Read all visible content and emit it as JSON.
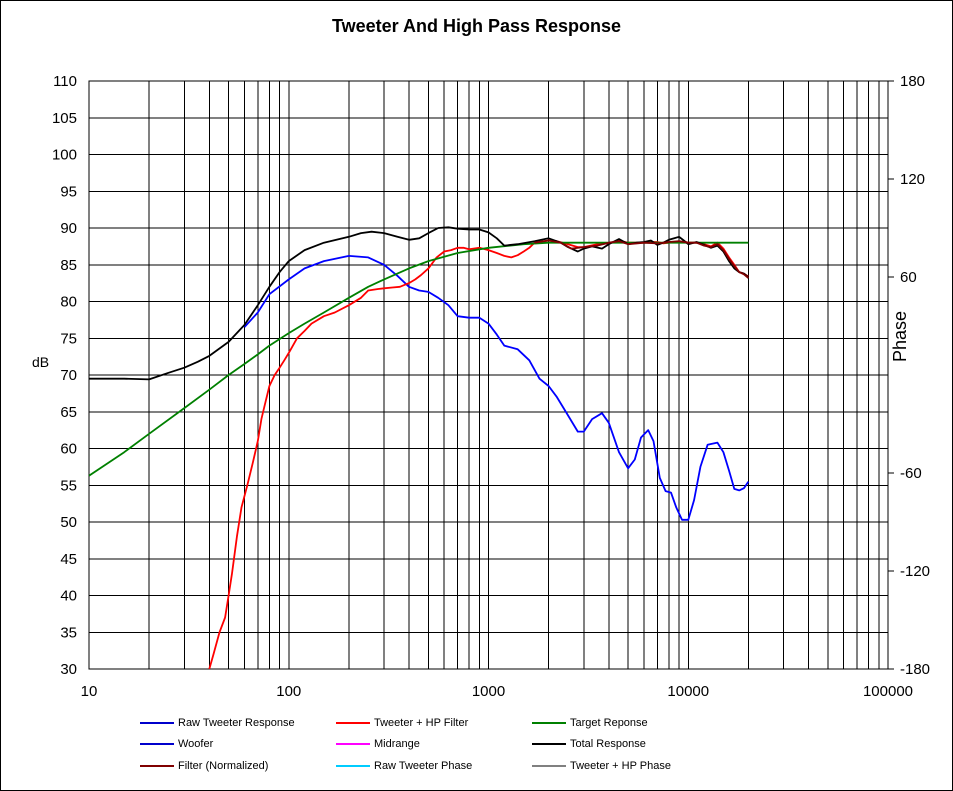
{
  "chart_data": {
    "type": "line",
    "title": "Tweeter  And High Pass Response",
    "ylabel": "dB",
    "y2label": "Phase",
    "xlabel": "",
    "xscale": "log",
    "xlim": [
      10,
      100000
    ],
    "ylim": [
      30,
      110
    ],
    "y2lim": [
      -180,
      180
    ],
    "grid": true,
    "legend_position": "bottom",
    "x_tick_labels": [
      "10",
      "100",
      "1000",
      "10000",
      "100000"
    ],
    "y_tick_labels": [
      "30",
      "35",
      "40",
      "45",
      "50",
      "55",
      "60",
      "65",
      "70",
      "75",
      "80",
      "85",
      "90",
      "95",
      "100",
      "105",
      "110"
    ],
    "y2_tick_labels": [
      "-180",
      "-120",
      "-60",
      "60",
      "120",
      "180"
    ],
    "legend": [
      {
        "name": "Raw Tweeter Response",
        "color": "#0000cc"
      },
      {
        "name": "Tweeter + HP Filter",
        "color": "#ff0000"
      },
      {
        "name": "Target Reponse",
        "color": "#008000"
      },
      {
        "name": "Woofer",
        "color": "#0000cc"
      },
      {
        "name": "Midrange",
        "color": "#ff00ff"
      },
      {
        "name": "Total Response",
        "color": "#000000"
      },
      {
        "name": "Filter (Normalized)",
        "color": "#800000"
      },
      {
        "name": "Raw Tweeter Phase",
        "color": "#00ccff"
      },
      {
        "name": "Tweeter + HP Phase",
        "color": "#808080"
      }
    ],
    "series": [
      {
        "name": "Woofer",
        "color": "#0000ff",
        "points": [
          [
            60,
            76.5
          ],
          [
            70,
            78.5
          ],
          [
            80,
            81
          ],
          [
            100,
            83
          ],
          [
            120,
            84.5
          ],
          [
            150,
            85.5
          ],
          [
            200,
            86.2
          ],
          [
            250,
            86
          ],
          [
            300,
            85
          ],
          [
            350,
            83.5
          ],
          [
            400,
            82
          ],
          [
            450,
            81.5
          ],
          [
            500,
            81.3
          ],
          [
            560,
            80.5
          ],
          [
            630,
            79.5
          ],
          [
            700,
            78
          ],
          [
            800,
            77.8
          ],
          [
            900,
            77.8
          ],
          [
            1000,
            77
          ],
          [
            1100,
            75.5
          ],
          [
            1200,
            74
          ],
          [
            1400,
            73.5
          ],
          [
            1600,
            72
          ],
          [
            1800,
            69.5
          ],
          [
            2000,
            68.5
          ],
          [
            2200,
            67
          ],
          [
            2500,
            64.5
          ],
          [
            2800,
            62.3
          ],
          [
            3000,
            62.3
          ],
          [
            3300,
            64
          ],
          [
            3700,
            64.8
          ],
          [
            4000,
            63.5
          ],
          [
            4500,
            59.5
          ],
          [
            5000,
            57.3
          ],
          [
            5400,
            58.5
          ],
          [
            5800,
            61.5
          ],
          [
            6300,
            62.5
          ],
          [
            6700,
            61
          ],
          [
            7200,
            56
          ],
          [
            7700,
            54.2
          ],
          [
            8200,
            54
          ],
          [
            8700,
            52
          ],
          [
            9300,
            50.3
          ],
          [
            10000,
            50.3
          ],
          [
            10700,
            53
          ],
          [
            11500,
            57.5
          ],
          [
            12500,
            60.5
          ],
          [
            14000,
            60.8
          ],
          [
            15000,
            59.5
          ],
          [
            16000,
            57
          ],
          [
            17000,
            54.5
          ],
          [
            18000,
            54.3
          ],
          [
            19000,
            54.6
          ],
          [
            20000,
            55.5
          ]
        ]
      },
      {
        "name": "Tweeter + HP Filter",
        "color": "#ff0000",
        "points": [
          [
            40,
            30
          ],
          [
            42,
            32
          ],
          [
            45,
            35
          ],
          [
            48,
            37
          ],
          [
            50,
            40
          ],
          [
            52,
            43
          ],
          [
            55,
            48
          ],
          [
            58,
            52
          ],
          [
            62,
            55
          ],
          [
            66,
            58
          ],
          [
            70,
            61
          ],
          [
            73,
            64
          ],
          [
            76,
            66
          ],
          [
            80,
            68.5
          ],
          [
            85,
            70
          ],
          [
            90,
            71
          ],
          [
            95,
            72
          ],
          [
            100,
            73
          ],
          [
            110,
            75
          ],
          [
            120,
            76
          ],
          [
            130,
            77
          ],
          [
            150,
            78
          ],
          [
            170,
            78.5
          ],
          [
            200,
            79.5
          ],
          [
            230,
            80.5
          ],
          [
            250,
            81.5
          ],
          [
            280,
            81.7
          ],
          [
            300,
            81.8
          ],
          [
            330,
            81.9
          ],
          [
            360,
            82
          ],
          [
            400,
            82.5
          ],
          [
            430,
            83
          ],
          [
            460,
            83.6
          ],
          [
            500,
            84.5
          ],
          [
            550,
            86
          ],
          [
            600,
            86.8
          ],
          [
            650,
            87
          ],
          [
            700,
            87.3
          ],
          [
            750,
            87.3
          ],
          [
            800,
            87.1
          ],
          [
            900,
            87.3
          ],
          [
            1000,
            87
          ],
          [
            1100,
            86.6
          ],
          [
            1200,
            86.2
          ],
          [
            1300,
            86
          ],
          [
            1400,
            86.3
          ],
          [
            1500,
            86.8
          ],
          [
            1600,
            87.3
          ],
          [
            1700,
            88
          ],
          [
            2000,
            88.3
          ],
          [
            2200,
            88.2
          ],
          [
            2500,
            87.8
          ],
          [
            2800,
            87.4
          ],
          [
            3000,
            87.4
          ],
          [
            3500,
            87.8
          ],
          [
            4000,
            87.9
          ],
          [
            4500,
            88.3
          ],
          [
            5000,
            88
          ],
          [
            5500,
            88
          ],
          [
            6000,
            88
          ],
          [
            6500,
            88.1
          ],
          [
            7000,
            88.1
          ],
          [
            7500,
            87.9
          ],
          [
            8000,
            88
          ],
          [
            8500,
            88.1
          ],
          [
            9000,
            88
          ],
          [
            9500,
            88.2
          ],
          [
            10000,
            88
          ],
          [
            11000,
            88
          ],
          [
            12000,
            87.8
          ],
          [
            13000,
            87.5
          ],
          [
            14000,
            88
          ],
          [
            15000,
            87.2
          ],
          [
            16000,
            86
          ],
          [
            17000,
            85
          ],
          [
            18000,
            84
          ],
          [
            19000,
            83.8
          ],
          [
            20000,
            83.4
          ]
        ]
      },
      {
        "name": "Target Reponse",
        "color": "#008000",
        "points": [
          [
            10,
            56.3
          ],
          [
            15,
            59.5
          ],
          [
            20,
            62
          ],
          [
            30,
            65.5
          ],
          [
            40,
            68
          ],
          [
            50,
            70
          ],
          [
            60,
            71.5
          ],
          [
            70,
            72.8
          ],
          [
            80,
            74
          ],
          [
            100,
            75.7
          ],
          [
            120,
            77
          ],
          [
            150,
            78.5
          ],
          [
            200,
            80.5
          ],
          [
            250,
            82
          ],
          [
            300,
            83
          ],
          [
            400,
            84.5
          ],
          [
            500,
            85.5
          ],
          [
            700,
            86.6
          ],
          [
            1000,
            87.3
          ],
          [
            1500,
            87.8
          ],
          [
            2000,
            88
          ],
          [
            3000,
            88
          ],
          [
            5000,
            88
          ],
          [
            10000,
            88
          ],
          [
            20000,
            88
          ]
        ]
      },
      {
        "name": "Total Response",
        "color": "#000000",
        "points": [
          [
            10,
            69.5
          ],
          [
            15,
            69.5
          ],
          [
            20,
            69.4
          ],
          [
            25,
            70.3
          ],
          [
            30,
            71
          ],
          [
            35,
            71.8
          ],
          [
            40,
            72.6
          ],
          [
            50,
            74.5
          ],
          [
            60,
            76.8
          ],
          [
            70,
            79.5
          ],
          [
            80,
            82
          ],
          [
            90,
            84
          ],
          [
            100,
            85.5
          ],
          [
            120,
            87
          ],
          [
            150,
            88
          ],
          [
            200,
            88.8
          ],
          [
            230,
            89.3
          ],
          [
            260,
            89.5
          ],
          [
            300,
            89.3
          ],
          [
            350,
            88.8
          ],
          [
            400,
            88.4
          ],
          [
            450,
            88.6
          ],
          [
            500,
            89.3
          ],
          [
            560,
            90
          ],
          [
            630,
            90.1
          ],
          [
            700,
            89.9
          ],
          [
            800,
            89.8
          ],
          [
            900,
            89.8
          ],
          [
            1000,
            89.4
          ],
          [
            1100,
            88.6
          ],
          [
            1200,
            87.6
          ],
          [
            1400,
            87.8
          ],
          [
            1700,
            88.2
          ],
          [
            2000,
            88.6
          ],
          [
            2300,
            88
          ],
          [
            2500,
            87.4
          ],
          [
            2800,
            86.8
          ],
          [
            3000,
            87.2
          ],
          [
            3300,
            87.5
          ],
          [
            3700,
            87.2
          ],
          [
            4000,
            87.8
          ],
          [
            4500,
            88.5
          ],
          [
            5000,
            87.8
          ],
          [
            5500,
            88
          ],
          [
            6000,
            88.1
          ],
          [
            6500,
            88.3
          ],
          [
            7000,
            87.7
          ],
          [
            7500,
            88
          ],
          [
            8000,
            88.4
          ],
          [
            8500,
            88.6
          ],
          [
            9000,
            88.8
          ],
          [
            9500,
            88.3
          ],
          [
            10000,
            87.8
          ],
          [
            11000,
            88.1
          ],
          [
            12000,
            87.7
          ],
          [
            13000,
            87.3
          ],
          [
            14000,
            87.6
          ],
          [
            15000,
            86.8
          ],
          [
            16000,
            85.5
          ],
          [
            17000,
            84.5
          ],
          [
            18000,
            84
          ],
          [
            19000,
            83.8
          ],
          [
            20000,
            83.3
          ]
        ]
      },
      {
        "name": "Filter (Normalized)",
        "color": "#800000",
        "points": [
          [
            1700,
            88
          ],
          [
            2000,
            88.3
          ],
          [
            2300,
            88
          ],
          [
            2600,
            87.2
          ],
          [
            3000,
            87.4
          ],
          [
            3500,
            87.6
          ],
          [
            4000,
            88
          ],
          [
            4500,
            88.2
          ],
          [
            5000,
            87.8
          ],
          [
            6000,
            88
          ],
          [
            7000,
            87.9
          ],
          [
            8000,
            88.1
          ],
          [
            9000,
            88.2
          ],
          [
            10000,
            88
          ],
          [
            11000,
            88
          ],
          [
            12000,
            87.6
          ],
          [
            13000,
            87.4
          ],
          [
            14000,
            87.8
          ],
          [
            15000,
            87
          ],
          [
            16000,
            85.8
          ],
          [
            17000,
            84.8
          ],
          [
            18000,
            84
          ],
          [
            19000,
            83.7
          ],
          [
            20000,
            83.2
          ]
        ]
      }
    ]
  }
}
